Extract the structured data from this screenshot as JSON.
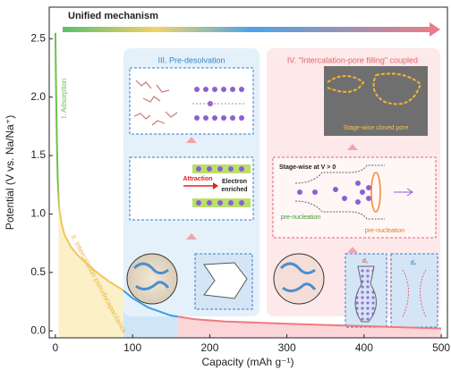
{
  "chart_data": {
    "type": "line",
    "title": "Unified mechanism",
    "x_label": "Capacity (mAh g⁻¹)",
    "y_label": "Potential (V vs. Na/Na⁺)",
    "x": [
      0,
      1,
      2,
      3,
      5,
      8,
      12,
      20,
      30,
      50,
      70,
      85,
      100,
      120,
      150,
      180,
      220,
      260,
      300,
      350,
      400,
      450,
      500
    ],
    "values": [
      2.55,
      2.0,
      1.6,
      1.3,
      1.05,
      0.92,
      0.82,
      0.72,
      0.64,
      0.52,
      0.42,
      0.36,
      0.28,
      0.2,
      0.13,
      0.1,
      0.08,
      0.07,
      0.06,
      0.05,
      0.04,
      0.03,
      0.02
    ],
    "xlim": [
      -8,
      508
    ],
    "ylim": [
      -0.06,
      2.77
    ],
    "xticks": [
      0,
      100,
      200,
      300,
      400,
      500
    ],
    "yticks": [
      {
        "value": 0,
        "label": "0.0"
      },
      0.5,
      {
        "value": 1,
        "label": "1.0"
      },
      1.5,
      {
        "value": 2,
        "label": "2.0"
      },
      2.5
    ],
    "grid": false,
    "regions": [
      {
        "label": "I. Adsorption",
        "x": [
          0,
          4
        ],
        "color": "#6cc04a"
      },
      {
        "label": "II. Intercalation pseudocapacitance",
        "x": [
          4,
          88
        ],
        "color": "#f2c65a",
        "fill": "#fbf0c8"
      },
      {
        "label": "III. Pre-desolvation",
        "x": [
          88,
          158
        ],
        "color": "#3a9be0",
        "fill": "#cfe6f7"
      },
      {
        "label": "IV. \"Intercalation-pore filling\" coupled",
        "x": [
          158,
          500
        ],
        "color": "#ef7a80",
        "fill": "#fbd6d8"
      }
    ],
    "annotations": [
      "Attraction",
      "Electron",
      "enriched",
      "Stage-wise at V > 0",
      "pre-nucleation",
      "pre-nucleation",
      "Stage-wise closed pore",
      "d₁",
      "d₂"
    ]
  }
}
